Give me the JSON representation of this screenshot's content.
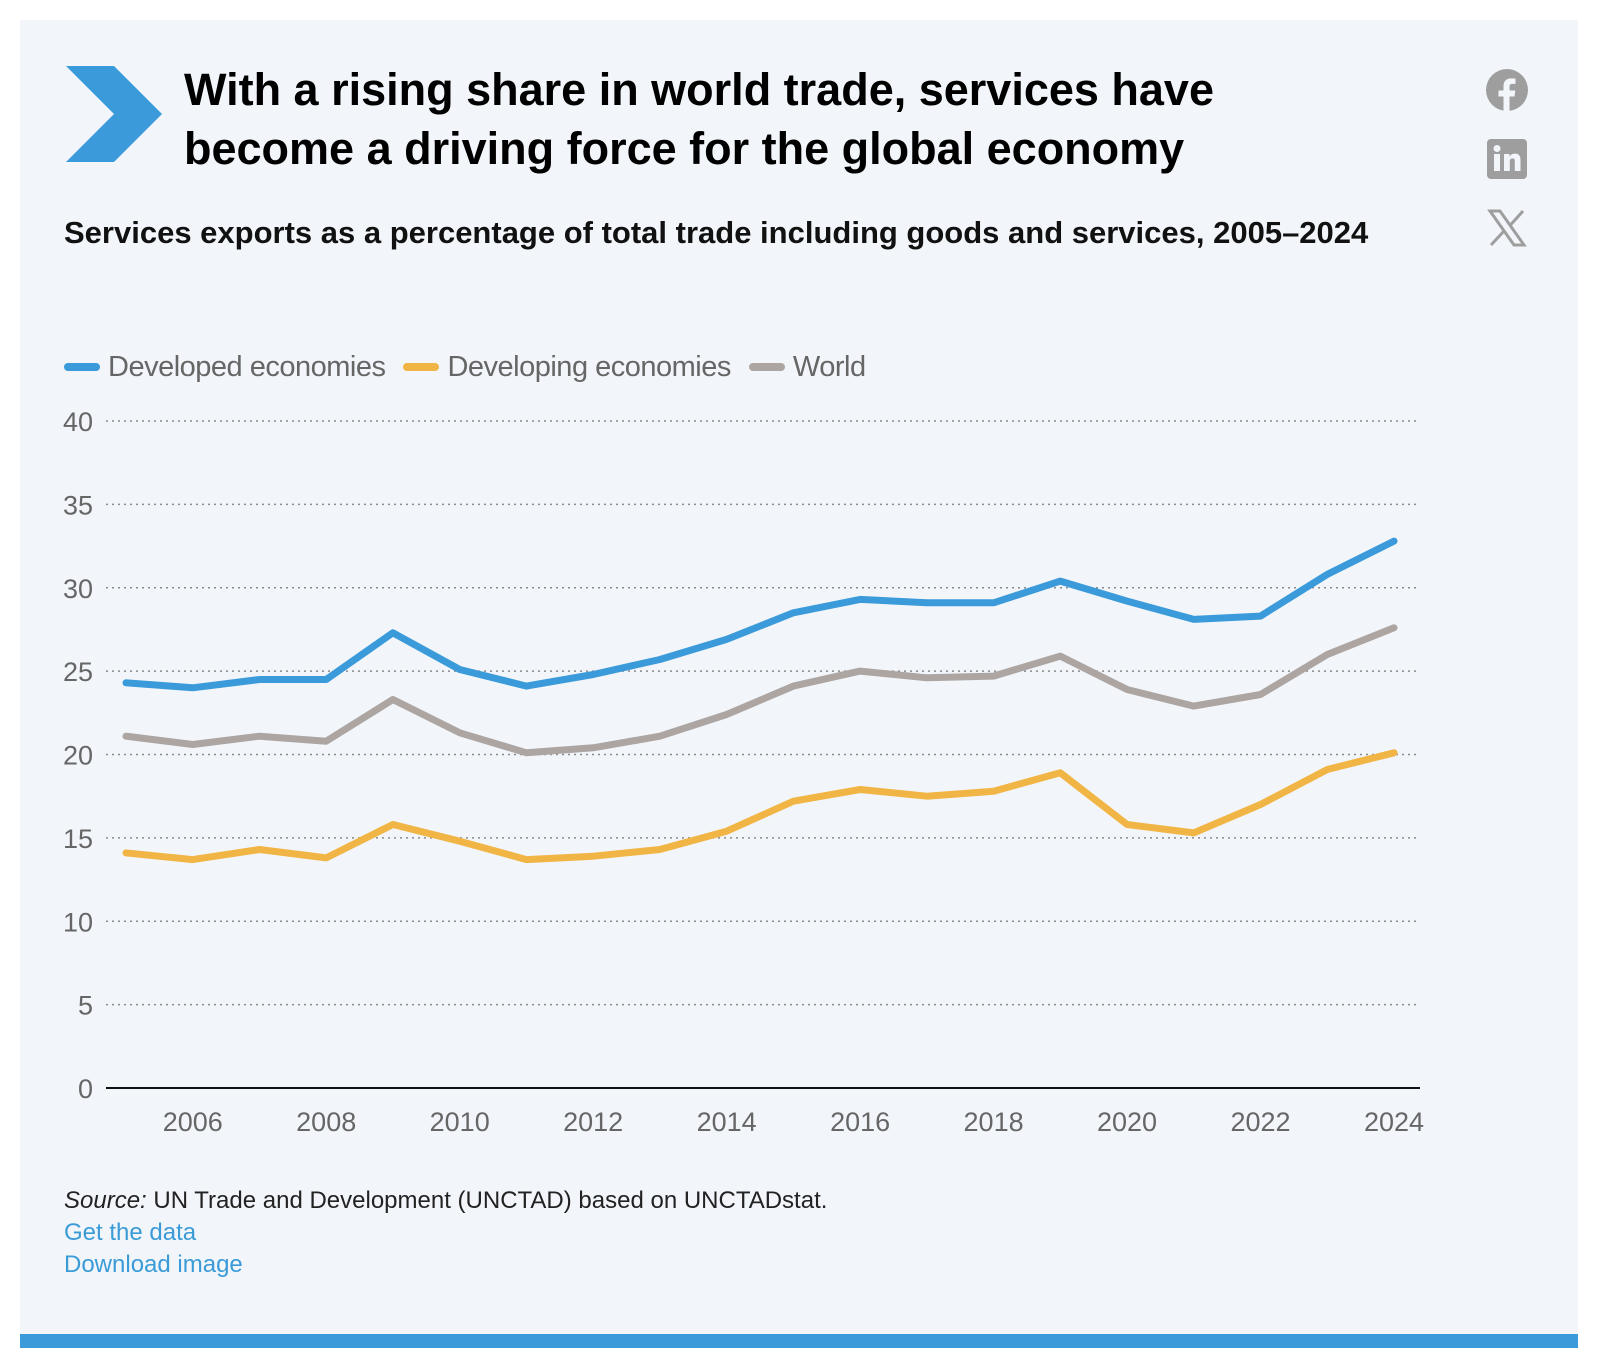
{
  "title": "With a rising share in world trade, services have become a driving force for the global economy",
  "colors": {
    "background": "#f2f6fb",
    "accent": "#3b9ad9",
    "developed": "#3b9ad9",
    "developing": "#f1b545",
    "world": "#ada5a1",
    "icon_gray": "#9e9e9e",
    "link": "#3a9bd6"
  },
  "social": [
    {
      "name": "facebook-icon"
    },
    {
      "name": "linkedin-icon"
    },
    {
      "name": "x-icon"
    }
  ],
  "chart_data": {
    "type": "line",
    "title": "Services exports as a percentage of total trade including goods and services, 2005–2024",
    "x": [
      2005,
      2006,
      2007,
      2008,
      2009,
      2010,
      2011,
      2012,
      2013,
      2014,
      2015,
      2016,
      2017,
      2018,
      2019,
      2020,
      2021,
      2022,
      2023,
      2024
    ],
    "x_ticks": [
      "2006",
      "2008",
      "2010",
      "2012",
      "2014",
      "2016",
      "2018",
      "2020",
      "2022",
      "2024"
    ],
    "y_ticks": [
      "0",
      "5",
      "10",
      "15",
      "20",
      "25",
      "30",
      "35",
      "40"
    ],
    "ylim": [
      0,
      40
    ],
    "grid": "horizontal dotted",
    "legend_position": "top-left",
    "series": [
      {
        "name": "Developed economies",
        "color": "#3b9ad9",
        "values": [
          24.3,
          24.0,
          24.5,
          24.5,
          27.3,
          25.1,
          24.1,
          24.8,
          25.7,
          26.9,
          28.5,
          29.3,
          29.1,
          29.1,
          30.4,
          29.2,
          28.1,
          28.3,
          30.8,
          32.8
        ]
      },
      {
        "name": "Developing economies",
        "color": "#f1b545",
        "values": [
          14.1,
          13.7,
          14.3,
          13.8,
          15.8,
          14.8,
          13.7,
          13.9,
          14.3,
          15.4,
          17.2,
          17.9,
          17.5,
          17.8,
          18.9,
          15.8,
          15.3,
          17.0,
          19.1,
          20.1
        ]
      },
      {
        "name": "World",
        "color": "#ada5a1",
        "values": [
          21.1,
          20.6,
          21.1,
          20.8,
          23.3,
          21.3,
          20.1,
          20.4,
          21.1,
          22.4,
          24.1,
          25.0,
          24.6,
          24.7,
          25.9,
          23.9,
          22.9,
          23.6,
          26.0,
          27.6
        ]
      }
    ]
  },
  "footer": {
    "source_prefix": "Source:",
    "source_text": " UN Trade and Development (UNCTAD) based on UNCTADstat.",
    "get_data": "Get the data",
    "download_image": "Download image"
  }
}
